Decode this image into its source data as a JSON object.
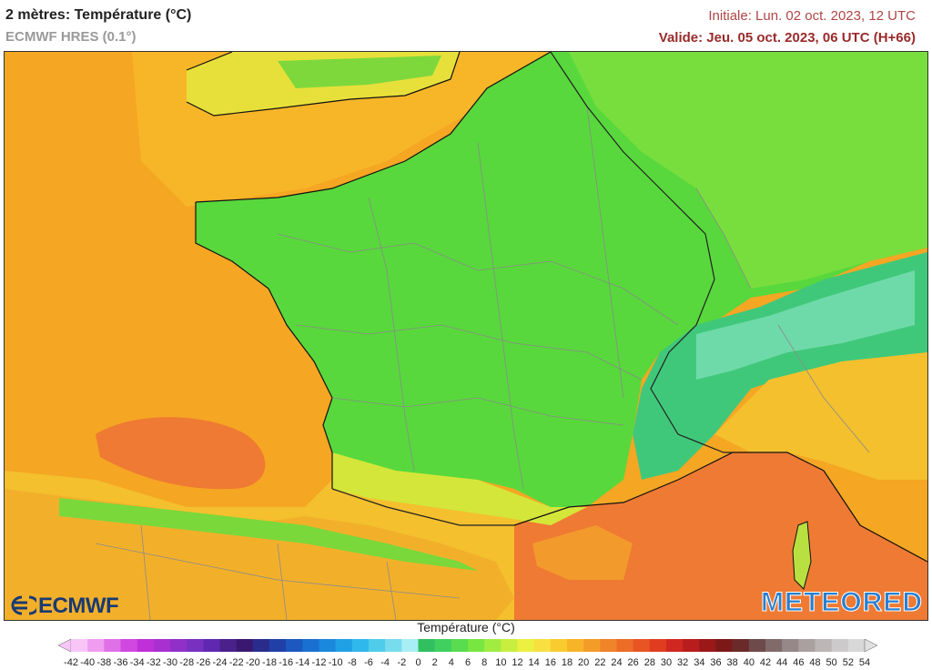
{
  "header": {
    "title": "2 mètres: Température (°C)",
    "model": "ECMWF HRES (0.1°)",
    "initial": "Initiale: Lun. 02 oct. 2023, 12 UTC",
    "valid": "Valide: Jeu. 05 oct. 2023, 06 UTC (H+66)"
  },
  "logos": {
    "left": "ECMWF",
    "right": "METEORED"
  },
  "legend": {
    "title": "Température (°C)",
    "ticks": [
      "-42",
      "-40",
      "-38",
      "-36",
      "-34",
      "-32",
      "-30",
      "-28",
      "-26",
      "-24",
      "-22",
      "-20",
      "-18",
      "-16",
      "-14",
      "-12",
      "-10",
      "-8",
      "-6",
      "-4",
      "-2",
      "0",
      "2",
      "4",
      "6",
      "8",
      "10",
      "12",
      "14",
      "16",
      "18",
      "20",
      "22",
      "24",
      "26",
      "28",
      "30",
      "32",
      "34",
      "36",
      "38",
      "40",
      "42",
      "44",
      "46",
      "48",
      "50",
      "52",
      "54"
    ],
    "colors": [
      "#f7c6f7",
      "#f09cf0",
      "#e070e8",
      "#d048e0",
      "#c030d8",
      "#a830d0",
      "#9030c8",
      "#7830c0",
      "#6028b0",
      "#4a208a",
      "#3a1870",
      "#2a2c8c",
      "#2040a8",
      "#1c58c0",
      "#1a70d0",
      "#1a88dc",
      "#20a0e4",
      "#30b8ec",
      "#50cceb",
      "#78dcef",
      "#a8eef5",
      "#30c060",
      "#40d060",
      "#58dc50",
      "#78e640",
      "#a0ec40",
      "#c8ee40",
      "#ecf040",
      "#f8e040",
      "#f8cc30",
      "#f8b428",
      "#f49c28",
      "#f08428",
      "#ec6c28",
      "#e85424",
      "#e03c20",
      "#d02820",
      "#b81c1c",
      "#9a1818",
      "#7c1818",
      "#6a2a2a",
      "#6e4a4a",
      "#806a6a",
      "#968888",
      "#aaa0a0",
      "#bcb6b6",
      "#cccaca",
      "#d8d8d8"
    ]
  },
  "map": {
    "colors": {
      "sea_warm": "#f5a623",
      "sea_hot": "#ef7a33",
      "sea_mild": "#f9c22e",
      "land_green": "#58d83c",
      "land_light_green": "#8ee03c",
      "land_yellow": "#d4e63a",
      "land_orange": "#f4b62c",
      "alps_teal": "#2fb89a",
      "border_gray": "#8a8a8a",
      "coast_black": "#111111"
    }
  }
}
